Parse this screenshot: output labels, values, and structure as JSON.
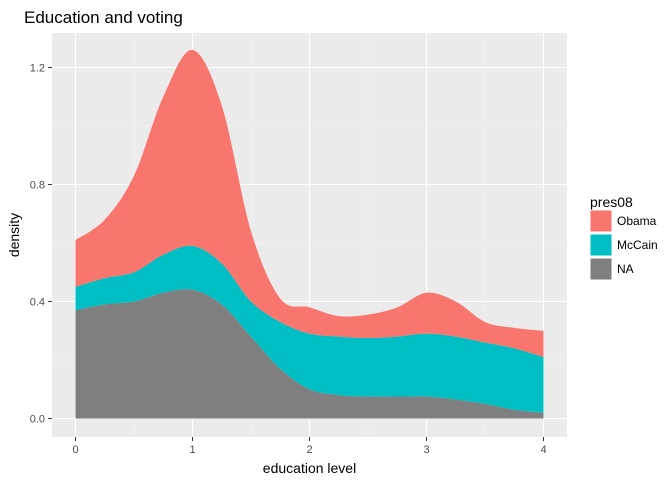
{
  "chart_data": {
    "type": "area",
    "stacked": true,
    "title": "Education and voting",
    "xlabel": "education level",
    "ylabel": "density",
    "xlim": [
      0,
      4
    ],
    "ylim": [
      0,
      1.2
    ],
    "x_ticks": [
      "0",
      "1",
      "2",
      "3",
      "4"
    ],
    "y_ticks": [
      "0.0",
      "0.4",
      "0.8",
      "1.2"
    ],
    "grid": true,
    "legend": {
      "title": "pres08",
      "position": "right"
    },
    "x": [
      0,
      0.25,
      0.5,
      0.75,
      1,
      1.25,
      1.5,
      1.75,
      2,
      2.25,
      2.5,
      2.75,
      3,
      3.25,
      3.5,
      3.75,
      4
    ],
    "series": [
      {
        "name": "NA",
        "color": "#7f7f7f",
        "values": [
          0.37,
          0.39,
          0.4,
          0.43,
          0.44,
          0.39,
          0.28,
          0.17,
          0.1,
          0.08,
          0.075,
          0.075,
          0.075,
          0.065,
          0.05,
          0.03,
          0.02
        ]
      },
      {
        "name": "McCain",
        "color": "#00bfc4",
        "values": [
          0.08,
          0.09,
          0.1,
          0.13,
          0.15,
          0.14,
          0.12,
          0.16,
          0.19,
          0.2,
          0.2,
          0.205,
          0.215,
          0.215,
          0.21,
          0.21,
          0.19
        ]
      },
      {
        "name": "Obama",
        "color": "#f8766d",
        "values": [
          0.16,
          0.2,
          0.33,
          0.54,
          0.67,
          0.54,
          0.24,
          0.08,
          0.09,
          0.07,
          0.08,
          0.1,
          0.14,
          0.12,
          0.07,
          0.07,
          0.09
        ]
      }
    ],
    "legend_order": [
      "Obama",
      "McCain",
      "NA"
    ]
  }
}
